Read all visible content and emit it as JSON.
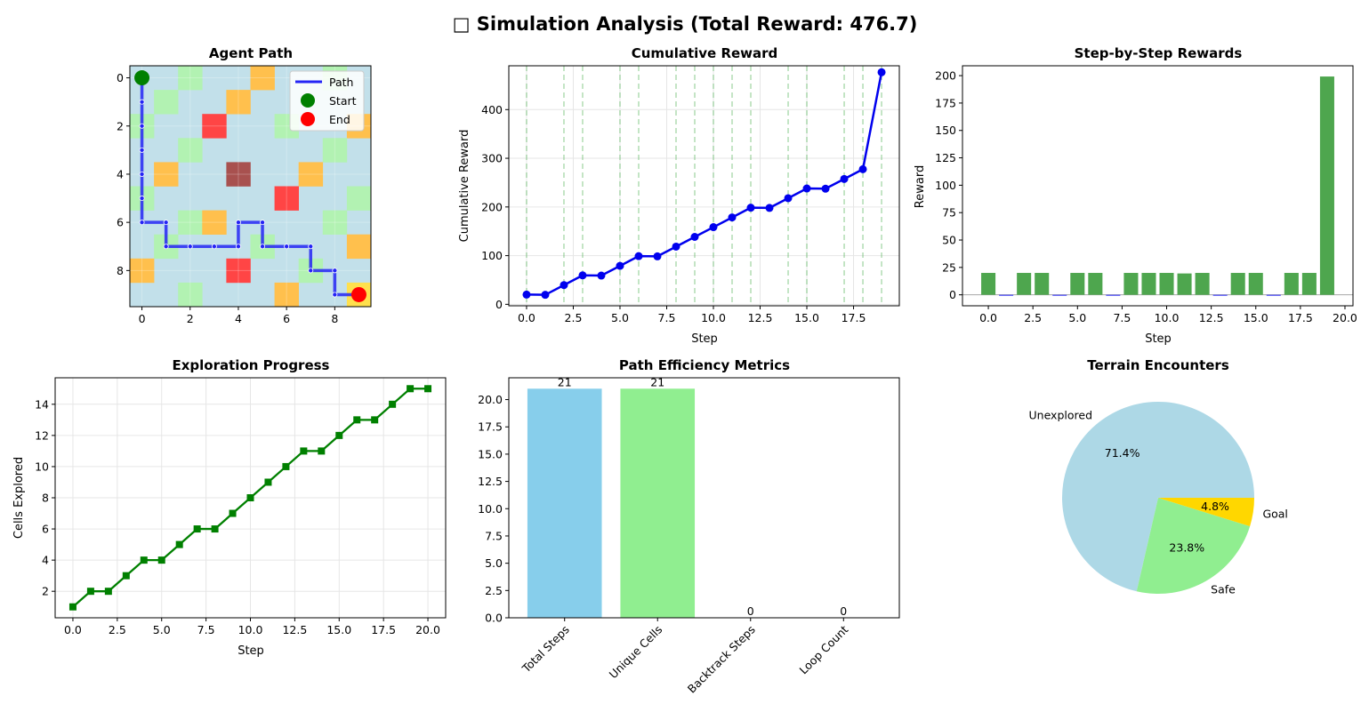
{
  "suptitle": "□ Simulation Analysis (Total Reward: 476.7)",
  "panels": {
    "path": {
      "title": "Agent Path",
      "legend": [
        "Path",
        "Start",
        "End"
      ]
    },
    "cumulative": {
      "title": "Cumulative Reward",
      "xlabel": "Step",
      "ylabel": "Cumulative Reward"
    },
    "step": {
      "title": "Step-by-Step Rewards",
      "xlabel": "Step",
      "ylabel": "Reward"
    },
    "explore": {
      "title": "Exploration Progress",
      "xlabel": "Step",
      "ylabel": "Cells Explored"
    },
    "efficiency": {
      "title": "Path Efficiency Metrics"
    },
    "terrain": {
      "title": "Terrain Encounters"
    }
  },
  "colors": {
    "grid_bg": "#c2e0ea",
    "safe": "#b2f2b2",
    "orange": "#ffc04d",
    "red": "#ff4545",
    "darkred": "#a8514f",
    "goal": "#ffe04d",
    "path": "#2424f5",
    "start": "#008000",
    "end": "#ff0000",
    "line_blue": "#0000ee",
    "bar_green": "#4ea64e",
    "explore_green": "#008000",
    "sky": "#87ceeb",
    "light_green": "#90ee90",
    "light_blue": "#add8e6",
    "gold": "#ffd700"
  },
  "chart_data": [
    {
      "type": "heatmap",
      "name": "Agent Path",
      "grid_size": [
        10,
        10
      ],
      "cells": [
        {
          "r": 0,
          "c": 2,
          "t": "safe"
        },
        {
          "r": 0,
          "c": 5,
          "t": "orange"
        },
        {
          "r": 0,
          "c": 8,
          "t": "safe"
        },
        {
          "r": 1,
          "c": 1,
          "t": "safe"
        },
        {
          "r": 1,
          "c": 4,
          "t": "orange"
        },
        {
          "r": 2,
          "c": 0,
          "t": "safe"
        },
        {
          "r": 2,
          "c": 3,
          "t": "red"
        },
        {
          "r": 2,
          "c": 6,
          "t": "safe"
        },
        {
          "r": 2,
          "c": 9,
          "t": "orange"
        },
        {
          "r": 3,
          "c": 2,
          "t": "safe"
        },
        {
          "r": 3,
          "c": 8,
          "t": "safe"
        },
        {
          "r": 4,
          "c": 1,
          "t": "orange"
        },
        {
          "r": 4,
          "c": 4,
          "t": "darkred"
        },
        {
          "r": 4,
          "c": 7,
          "t": "orange"
        },
        {
          "r": 5,
          "c": 0,
          "t": "safe"
        },
        {
          "r": 5,
          "c": 6,
          "t": "red"
        },
        {
          "r": 5,
          "c": 9,
          "t": "safe"
        },
        {
          "r": 6,
          "c": 2,
          "t": "safe"
        },
        {
          "r": 6,
          "c": 3,
          "t": "orange"
        },
        {
          "r": 6,
          "c": 8,
          "t": "safe"
        },
        {
          "r": 7,
          "c": 1,
          "t": "safe"
        },
        {
          "r": 7,
          "c": 5,
          "t": "safe"
        },
        {
          "r": 7,
          "c": 9,
          "t": "orange"
        },
        {
          "r": 8,
          "c": 0,
          "t": "orange"
        },
        {
          "r": 8,
          "c": 4,
          "t": "red"
        },
        {
          "r": 8,
          "c": 7,
          "t": "safe"
        },
        {
          "r": 9,
          "c": 2,
          "t": "safe"
        },
        {
          "r": 9,
          "c": 6,
          "t": "orange"
        },
        {
          "r": 9,
          "c": 9,
          "t": "goal"
        }
      ],
      "path": [
        [
          0,
          0
        ],
        [
          0,
          1
        ],
        [
          0,
          2
        ],
        [
          0,
          3
        ],
        [
          0,
          4
        ],
        [
          0,
          5
        ],
        [
          0,
          6
        ],
        [
          1,
          6
        ],
        [
          1,
          7
        ],
        [
          2,
          7
        ],
        [
          3,
          7
        ],
        [
          4,
          7
        ],
        [
          4,
          6
        ],
        [
          5,
          6
        ],
        [
          5,
          7
        ],
        [
          6,
          7
        ],
        [
          7,
          7
        ],
        [
          7,
          8
        ],
        [
          8,
          8
        ],
        [
          8,
          9
        ],
        [
          9,
          9
        ]
      ],
      "x_ticks": [
        0,
        2,
        4,
        6,
        8
      ],
      "y_ticks": [
        0,
        2,
        4,
        6,
        8
      ]
    },
    {
      "type": "line",
      "name": "Cumulative Reward",
      "x": [
        0,
        1,
        2,
        3,
        4,
        5,
        6,
        7,
        8,
        9,
        10,
        11,
        12,
        13,
        14,
        15,
        16,
        17,
        18,
        19
      ],
      "y": [
        20,
        19.5,
        39.5,
        59.5,
        59,
        79,
        99,
        98.5,
        118.5,
        138.5,
        158.5,
        178.5,
        198.5,
        198,
        218,
        238,
        237.5,
        257.5,
        277.5,
        476.7
      ],
      "xlim": [
        -0.95,
        19.95
      ],
      "ylim": [
        -3,
        490
      ],
      "x_ticks": [
        "0.0",
        "2.5",
        "5.0",
        "7.5",
        "10.0",
        "12.5",
        "15.0",
        "17.5"
      ],
      "y_ticks": [
        0,
        100,
        200,
        300,
        400
      ],
      "vlines": [
        0,
        2,
        3,
        5,
        6,
        8,
        9,
        10,
        11,
        12,
        14,
        15,
        17,
        18,
        19
      ]
    },
    {
      "type": "bar",
      "name": "Step-by-Step Rewards",
      "x": [
        0,
        1,
        2,
        3,
        4,
        5,
        6,
        7,
        8,
        9,
        10,
        11,
        12,
        13,
        14,
        15,
        16,
        17,
        18,
        19
      ],
      "values": [
        20,
        -0.5,
        20,
        20,
        -0.5,
        20,
        20,
        -0.5,
        20,
        20,
        20,
        19.5,
        20,
        -0.5,
        20,
        20,
        -0.5,
        20,
        20,
        199.2
      ],
      "xlim": [
        -1.45,
        20.45
      ],
      "ylim": [
        -10,
        209
      ],
      "x_ticks": [
        "0.0",
        "2.5",
        "5.0",
        "7.5",
        "10.0",
        "12.5",
        "15.0",
        "17.5",
        "20.0"
      ],
      "y_ticks": [
        0,
        25,
        50,
        75,
        100,
        125,
        150,
        175,
        200
      ]
    },
    {
      "type": "line",
      "name": "Exploration Progress",
      "x": [
        0,
        1,
        2,
        3,
        4,
        5,
        6,
        7,
        8,
        9,
        10,
        11,
        12,
        13,
        14,
        15,
        16,
        17,
        18,
        19,
        20
      ],
      "y": [
        1,
        2,
        2,
        3,
        4,
        4,
        5,
        6,
        6,
        7,
        8,
        9,
        10,
        11,
        11,
        12,
        13,
        13,
        14,
        15,
        15
      ],
      "xlim": [
        -1,
        21
      ],
      "ylim": [
        0.3,
        15.7
      ],
      "x_ticks": [
        "0.0",
        "2.5",
        "5.0",
        "7.5",
        "10.0",
        "12.5",
        "15.0",
        "17.5",
        "20.0"
      ],
      "y_ticks": [
        2,
        4,
        6,
        8,
        10,
        12,
        14
      ]
    },
    {
      "type": "bar",
      "name": "Path Efficiency Metrics",
      "categories": [
        "Total Steps",
        "Unique Cells",
        "Backtrack Steps",
        "Loop Count"
      ],
      "values": [
        21,
        21,
        0,
        0
      ],
      "ylim": [
        0,
        22
      ],
      "y_ticks": [
        "0.0",
        "2.5",
        "5.0",
        "7.5",
        "10.0",
        "12.5",
        "15.0",
        "17.5",
        "20.0"
      ]
    },
    {
      "type": "pie",
      "name": "Terrain Encounters",
      "labels": [
        "Unexplored",
        "Safe",
        "Goal"
      ],
      "values": [
        71.4,
        23.8,
        4.8
      ],
      "pct_labels": [
        "71.4%",
        "23.8%",
        "4.8%"
      ]
    }
  ]
}
